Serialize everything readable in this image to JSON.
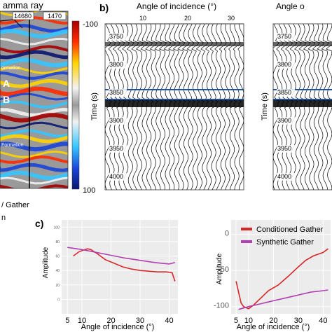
{
  "panel_a": {
    "title_fragment": "amma ray",
    "trace_label_1": "14680",
    "trace_label_2": "1470",
    "colorbar_top": "-100",
    "colorbar_bottom": "100",
    "colorbar_axis": "Time (s)",
    "horizon_1": "ormation",
    "horizon_2": "Formation",
    "zone_a": "A",
    "zone_b": "B",
    "bottom_caption_1": "/ Gather",
    "bottom_caption_2": "n"
  },
  "panel_b": {
    "label": "b)",
    "title": "Angle of incidence (°)",
    "x_ticks": [
      "10",
      "20",
      "30"
    ],
    "time_ticks": [
      "3750",
      "3800",
      "3850",
      "3900",
      "3950",
      "4000"
    ],
    "y_axis_title": "Time (s)",
    "right_title": "Angle o",
    "right_time_ticks": [
      "3750",
      "3800",
      "3850",
      "3900",
      "3950",
      "4000"
    ]
  },
  "colors": {
    "conditioned": "#d62728",
    "synthetic": "#b03fb0",
    "marker": "#1f4fa0",
    "plot_bg": "#ececec"
  },
  "chart_data": [
    {
      "type": "line",
      "label": "c)",
      "xlabel": "Angle of incidence (°)",
      "ylabel": "Amplitude",
      "xlim": [
        3,
        43
      ],
      "ylim": [
        -20,
        110
      ],
      "x_ticks": [
        "5",
        "10",
        "20",
        "30",
        "40"
      ],
      "y_ticks": [
        "100",
        "80",
        "60",
        "40",
        "20",
        "0"
      ],
      "grid": true,
      "series": [
        {
          "color": "#d62728",
          "x": [
            7,
            9,
            11,
            12,
            13,
            15,
            18,
            21,
            24,
            27,
            30,
            33,
            36,
            39,
            41,
            42
          ],
          "y": [
            60,
            66,
            69,
            70,
            69,
            64,
            55,
            50,
            45,
            42,
            40,
            39,
            38,
            38,
            37,
            25
          ]
        },
        {
          "color": "#b03fb0",
          "x": [
            5,
            10,
            15,
            20,
            25,
            30,
            35,
            40,
            42
          ],
          "y": [
            72,
            69,
            65,
            61,
            57,
            54,
            51,
            49,
            51
          ]
        }
      ]
    },
    {
      "type": "line",
      "xlabel": "Angle of incidence (°)",
      "ylabel": "Amplitude",
      "xlim": [
        3,
        43
      ],
      "ylim": [
        -110,
        20
      ],
      "x_ticks": [
        "5",
        "10",
        "20",
        "30",
        "40"
      ],
      "y_ticks": [
        "0",
        "-50",
        "-100"
      ],
      "grid": true,
      "legend": {
        "position": "top-right",
        "entries": [
          "Conditioned Gather",
          "Synthetic Gather"
        ]
      },
      "series": [
        {
          "name": "Conditioned Gather",
          "color": "#d62728",
          "x": [
            5,
            6,
            7,
            8,
            10,
            12,
            15,
            18,
            22,
            26,
            30,
            33,
            36,
            40,
            42
          ],
          "y": [
            -65,
            -80,
            -95,
            -100,
            -103,
            -98,
            -88,
            -78,
            -70,
            -58,
            -45,
            -36,
            -30,
            -25,
            -20
          ]
        },
        {
          "name": "Synthetic Gather",
          "color": "#b03fb0",
          "x": [
            6,
            10,
            15,
            20,
            25,
            30,
            35,
            40,
            42
          ],
          "y": [
            -104,
            -100,
            -96,
            -92,
            -88,
            -84,
            -80,
            -78,
            -77
          ]
        }
      ]
    }
  ]
}
